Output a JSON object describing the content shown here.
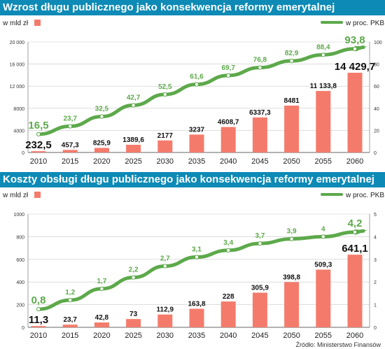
{
  "charts": [
    {
      "title": "Wzrost długu publicznego jako konsekwencja reformy emerytalnej",
      "left_unit_label": "w mld zł",
      "right_unit_label": "w proc. PKB"
    },
    {
      "title": "Koszty obsługi długu publicznego jako konsekwencja reformy emerytalnej",
      "left_unit_label": "w mld zł",
      "right_unit_label": "w proc. PKB"
    }
  ],
  "source": "Źródło: Ministerstwo Finansów",
  "colors": {
    "bar": "#f47b6b",
    "line": "#5da94b",
    "title_bg": "#0d8ab6"
  },
  "chart_data": [
    {
      "type": "bar",
      "title": "Wzrost długu publicznego jako konsekwencja reformy emerytalnej",
      "categories": [
        "2010",
        "2015",
        "2020",
        "2025",
        "2030",
        "2035",
        "2040",
        "2045",
        "2050",
        "2055",
        "2060"
      ],
      "series": [
        {
          "name": "w mld zł",
          "axis": "left",
          "type": "bar",
          "values": [
            232.5,
            457.3,
            825.9,
            1389.6,
            2177,
            3237,
            4608.7,
            6337.3,
            8481,
            11133.8,
            14429.7
          ],
          "labels": [
            "232,5",
            "457,3",
            "825,9",
            "1389,6",
            "2177",
            "3237",
            "4608,7",
            "6337,3",
            "8481",
            "11 133,8",
            "14 429,7"
          ]
        },
        {
          "name": "w proc. PKB",
          "axis": "right",
          "type": "line",
          "values": [
            16.5,
            23.7,
            32.5,
            42.7,
            52.5,
            61.6,
            69.7,
            76.8,
            82.9,
            88.4,
            93.8
          ],
          "labels": [
            "16,5",
            "23,7",
            "32,5",
            "42,7",
            "52,5",
            "61,6",
            "69,7",
            "76,8",
            "82,9",
            "88,4",
            "93,8"
          ]
        }
      ],
      "y_left": {
        "ylim": [
          0,
          20000
        ],
        "ticks": [
          "0",
          "4000",
          "8000",
          "12 000",
          "16 000",
          "20 000"
        ],
        "tick_values": [
          0,
          4000,
          8000,
          12000,
          16000,
          20000
        ]
      },
      "y_right": {
        "ylim": [
          0,
          100
        ],
        "ticks": [
          "0",
          "20",
          "40",
          "60",
          "80",
          "100"
        ],
        "tick_values": [
          0,
          20,
          40,
          60,
          80,
          100
        ]
      }
    },
    {
      "type": "bar",
      "title": "Koszty obsługi długu publicznego jako konsekwencja reformy emerytalnej",
      "categories": [
        "2010",
        "2015",
        "2020",
        "2025",
        "2030",
        "2035",
        "2040",
        "2045",
        "2050",
        "2055",
        "2060"
      ],
      "series": [
        {
          "name": "w mld zł",
          "axis": "left",
          "type": "bar",
          "values": [
            11.3,
            23.7,
            42.8,
            73,
            112.9,
            163.8,
            228,
            305.9,
            398.8,
            509.3,
            641.1
          ],
          "labels": [
            "11,3",
            "23,7",
            "42,8",
            "73",
            "112,9",
            "163,8",
            "228",
            "305,9",
            "398,8",
            "509,3",
            "641,1"
          ]
        },
        {
          "name": "w proc. PKB",
          "axis": "right",
          "type": "line",
          "values": [
            0.8,
            1.2,
            1.7,
            2.2,
            2.7,
            3.1,
            3.4,
            3.7,
            3.9,
            4,
            4.2
          ],
          "labels": [
            "0,8",
            "1,2",
            "1,7",
            "2,2",
            "2,7",
            "3,1",
            "3,4",
            "3,7",
            "3,9",
            "4",
            "4,2"
          ]
        }
      ],
      "y_left": {
        "ylim": [
          0,
          1000
        ],
        "ticks": [
          "0",
          "200",
          "400",
          "600",
          "800",
          "1000"
        ],
        "tick_values": [
          0,
          200,
          400,
          600,
          800,
          1000
        ]
      },
      "y_right": {
        "ylim": [
          0,
          5
        ],
        "ticks": [
          "0",
          "1",
          "2",
          "3",
          "4",
          "5"
        ],
        "tick_values": [
          0,
          1,
          2,
          3,
          4,
          5
        ]
      }
    }
  ]
}
